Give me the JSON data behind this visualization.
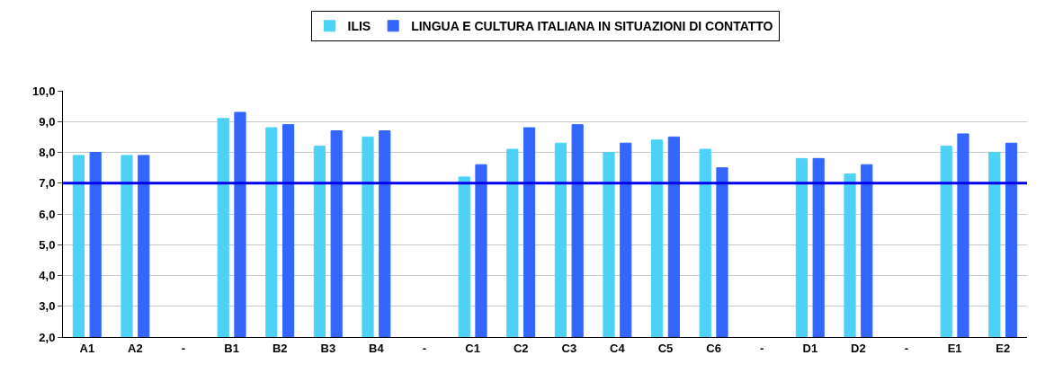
{
  "chart_data": {
    "type": "bar",
    "categories": [
      "A1",
      "A2",
      "-",
      "B1",
      "B2",
      "B3",
      "B4",
      "-",
      "C1",
      "C2",
      "C3",
      "C4",
      "C5",
      "C6",
      "-",
      "D1",
      "D2",
      "-",
      "E1",
      "E2"
    ],
    "series": [
      {
        "name": "ILIS",
        "color": "#4dd2f5",
        "values": [
          7.9,
          7.9,
          null,
          9.1,
          8.8,
          8.2,
          8.5,
          null,
          7.2,
          8.1,
          8.3,
          8.0,
          8.4,
          8.1,
          null,
          7.8,
          7.3,
          null,
          8.2,
          8.0
        ]
      },
      {
        "name": "LINGUA E CULTURA ITALIANA IN SITUAZIONI DI CONTATTO",
        "color": "#3366ff",
        "values": [
          8.0,
          7.9,
          null,
          9.3,
          8.9,
          8.7,
          8.7,
          null,
          7.6,
          8.8,
          8.9,
          8.3,
          8.5,
          7.5,
          null,
          7.8,
          7.6,
          null,
          8.6,
          8.3
        ]
      }
    ],
    "ylim": [
      2,
      10
    ],
    "yticks": [
      {
        "value": 2,
        "label": "2,0"
      },
      {
        "value": 3,
        "label": "3,0"
      },
      {
        "value": 4,
        "label": "4,0"
      },
      {
        "value": 5,
        "label": "5,0"
      },
      {
        "value": 6,
        "label": "6,0"
      },
      {
        "value": 7,
        "label": "7,0"
      },
      {
        "value": 8,
        "label": "8,0"
      },
      {
        "value": 9,
        "label": "9,0"
      },
      {
        "value": 10,
        "label": "10,0"
      }
    ],
    "ref_lines": [
      {
        "axis": "y",
        "value": 7,
        "color": "#0000ee"
      }
    ],
    "grid": "y",
    "legend": "top"
  }
}
